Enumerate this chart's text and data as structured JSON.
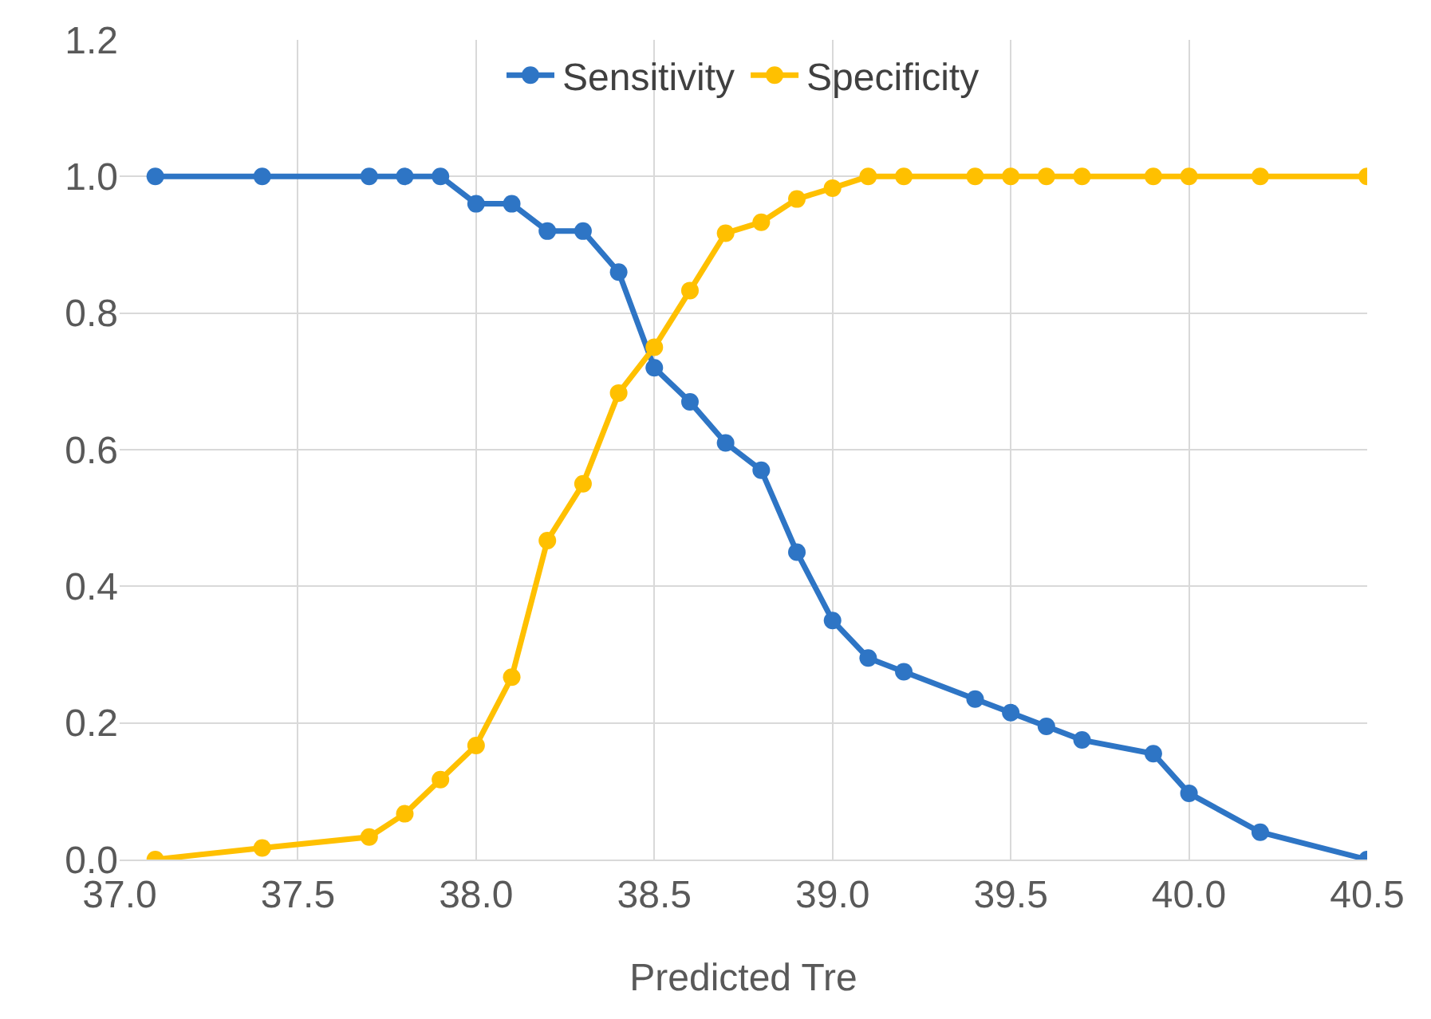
{
  "chart_data": {
    "type": "line",
    "xlabel": "Predicted Tre",
    "marker": "circle",
    "line_style": "solid",
    "grid": true,
    "legend": "top",
    "xlim": [
      37.0,
      40.5
    ],
    "xticks": [
      {
        "value": 37.0,
        "label": "37.0"
      },
      {
        "value": 37.5,
        "label": "37.5"
      },
      {
        "value": 38.0,
        "label": "38.0"
      },
      {
        "value": 38.5,
        "label": "38.5"
      },
      {
        "value": 39.0,
        "label": "39.0"
      },
      {
        "value": 39.5,
        "label": "39.5"
      },
      {
        "value": 40.0,
        "label": "40.0"
      },
      {
        "value": 40.5,
        "label": "40.5"
      }
    ],
    "ylim": [
      0,
      1.2
    ],
    "yticks": [
      {
        "value": 0,
        "label": "0.0"
      },
      {
        "value": 0.2,
        "label": "0.2"
      },
      {
        "value": 0.4,
        "label": "0.4"
      },
      {
        "value": 0.6,
        "label": "0.6"
      },
      {
        "value": 0.8,
        "label": "0.8"
      },
      {
        "value": 1.0,
        "label": "1.0"
      },
      {
        "value": 1.2,
        "label": "1.2"
      }
    ],
    "x": [
      37.1,
      37.4,
      37.7,
      37.8,
      37.9,
      38.0,
      38.1,
      38.2,
      38.3,
      38.4,
      38.5,
      38.6,
      38.7,
      38.8,
      38.9,
      39.0,
      39.1,
      39.2,
      39.4,
      39.5,
      39.6,
      39.7,
      39.9,
      40.0,
      40.2,
      40.5
    ],
    "series": [
      {
        "name": "Sensitivity",
        "color": "#2e75c5",
        "values": [
          1,
          1,
          1,
          1,
          1,
          0.96,
          0.96,
          0.92,
          0.92,
          0.86,
          0.72,
          0.67,
          0.61,
          0.57,
          0.45,
          0.35,
          0.295,
          0.275,
          0.235,
          0.215,
          0.195,
          0.175,
          0.155,
          0.097,
          0.04,
          0
        ]
      },
      {
        "name": "Specificity",
        "color": "#ffc000",
        "values": [
          0,
          0.017,
          0.033,
          0.067,
          0.117,
          0.167,
          0.267,
          0.467,
          0.55,
          0.683,
          0.75,
          0.833,
          0.917,
          0.933,
          0.967,
          0.983,
          1,
          1,
          1,
          1,
          1,
          1,
          1,
          1,
          1,
          1
        ]
      }
    ]
  }
}
